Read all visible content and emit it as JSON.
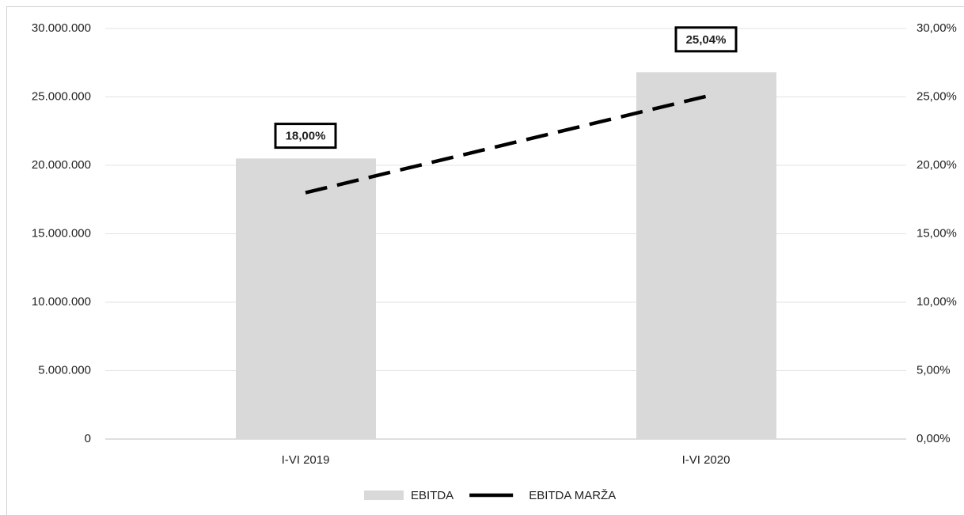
{
  "chart_data": {
    "type": "bar",
    "categories": [
      "I-VI 2019",
      "I-VI 2020"
    ],
    "series": [
      {
        "name": "EBITDA",
        "type": "bar",
        "color": "#d9d9d9",
        "values": [
          20500000,
          26800000
        ]
      },
      {
        "name": "EBITDA MARŽA",
        "type": "line",
        "axis": "y2",
        "color": "#000000",
        "values": [
          18,
          25.04
        ],
        "value_labels": [
          "18,00%",
          "25,04%"
        ]
      }
    ],
    "ylim": [
      0,
      30000000
    ],
    "yticks": [
      0,
      {
        "value": 5000000,
        "label": "5.000.000"
      },
      {
        "value": 10000000,
        "label": "10.000.000"
      },
      {
        "value": 15000000,
        "label": "15.000.000"
      },
      {
        "value": 20000000,
        "label": "20.000.000"
      },
      {
        "value": 25000000,
        "label": "25.000.000"
      },
      {
        "value": 30000000,
        "label": "30.000.000"
      }
    ],
    "y2lim": [
      0,
      30
    ],
    "y2ticks": [
      {
        "value": 0,
        "label": "0,00%"
      },
      {
        "value": 5,
        "label": "5,00%"
      },
      {
        "value": 10,
        "label": "10,00%"
      },
      {
        "value": 15,
        "label": "15,00%"
      },
      {
        "value": 20,
        "label": "20,00%"
      },
      {
        "value": 25,
        "label": "25,00%"
      },
      {
        "value": 30,
        "label": "30,00%"
      }
    ],
    "grid": true,
    "legend": "bottom"
  }
}
